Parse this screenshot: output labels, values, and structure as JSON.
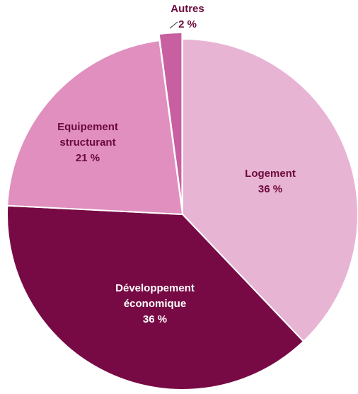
{
  "chart_data": {
    "type": "pie",
    "title": "",
    "slices": [
      {
        "label_lines": [
          "Logement"
        ],
        "value_label": "36 %",
        "value": 36,
        "color": "#e8b4d4",
        "text_color": "#6b0a3c"
      },
      {
        "label_lines": [
          "Développement",
          "économique"
        ],
        "value_label": "36 %",
        "value": 36,
        "color": "#770a44",
        "text_color": "#ffffff"
      },
      {
        "label_lines": [
          "Equipement",
          "structurant"
        ],
        "value_label": "21 %",
        "value": 21,
        "color": "#e08fbf",
        "text_color": "#6b0a3c"
      },
      {
        "label_lines": [
          "Autres"
        ],
        "value_label": "2 %",
        "value": 2,
        "color": "#c85fa0",
        "text_color": "#6b0a3c",
        "exploded": true
      }
    ]
  }
}
